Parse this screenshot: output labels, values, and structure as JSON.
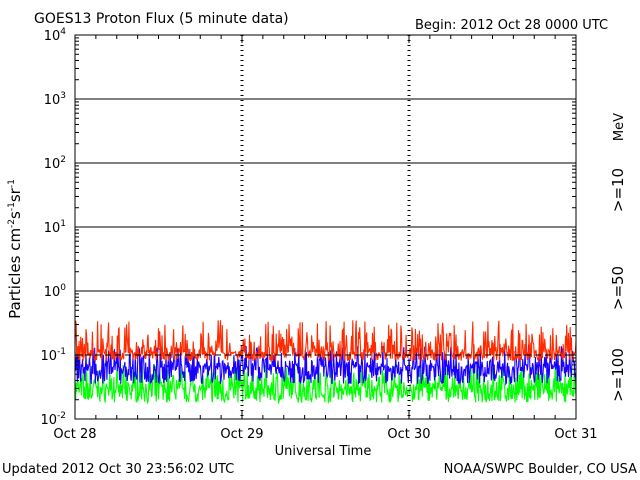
{
  "title": "GOES13 Proton Flux (5 minute data)",
  "begin": "Begin: 2012 Oct 28 0000 UTC",
  "updated": "Updated 2012 Oct 30 23:56:02 UTC",
  "credit": "NOAA/SWPC Boulder, CO USA",
  "colors": {
    "red": "#ff2a00",
    "blue": "#1a00ff",
    "green": "#00ff00"
  },
  "chart_data": {
    "type": "line",
    "title": "GOES13 Proton Flux (5 minute data)",
    "xlabel": "Universal Time",
    "ylabel": "Particles cm⁻²s⁻¹sr⁻¹",
    "yscale": "log",
    "ylim": [
      0.01,
      10000
    ],
    "y_ticks": [
      {
        "base": "10",
        "exp": "-2"
      },
      {
        "base": "10",
        "exp": "-1"
      },
      {
        "base": "10",
        "exp": "0"
      },
      {
        "base": "10",
        "exp": "1"
      },
      {
        "base": "10",
        "exp": "2"
      },
      {
        "base": "10",
        "exp": "3"
      },
      {
        "base": "10",
        "exp": "4"
      }
    ],
    "x_ticks": [
      "Oct 28",
      "Oct 29",
      "Oct 30",
      "Oct 31"
    ],
    "legend": [
      {
        "label": ">=10",
        "color": "#ff2a00"
      },
      {
        "label": ">=50",
        "color": "#1a00ff"
      },
      {
        "label": ">=100",
        "color": "#00ff00"
      }
    ],
    "legend_unit": "MeV",
    "series": [
      {
        "name": ">=10",
        "color": "#ff2a00",
        "typical": 0.11,
        "min": 0.08,
        "max": 0.35
      },
      {
        "name": ">=50",
        "color": "#1a00ff",
        "typical": 0.065,
        "min": 0.035,
        "max": 0.14
      },
      {
        "name": ">=100",
        "color": "#00ff00",
        "typical": 0.03,
        "min": 0.018,
        "max": 0.07
      }
    ],
    "threshold_lines": [
      1,
      10,
      100,
      1000
    ]
  }
}
